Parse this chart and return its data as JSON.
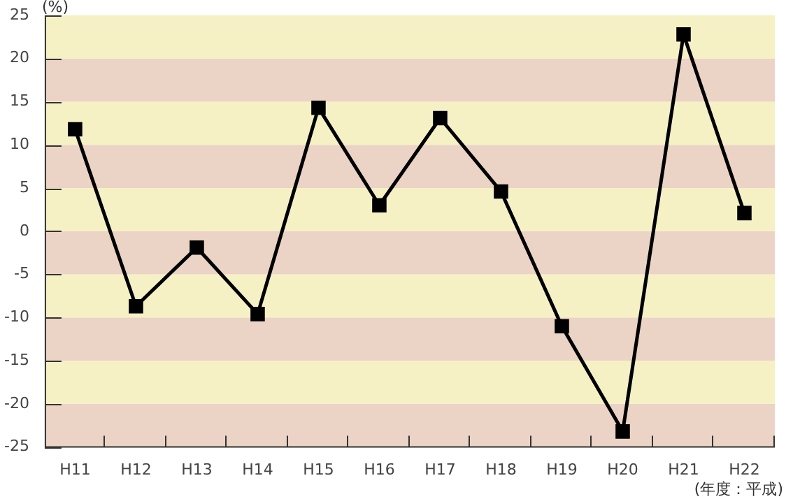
{
  "chart_data": {
    "type": "line",
    "ylabel": "(%)",
    "xlabel": "(年度：平成)",
    "categories": [
      "H11",
      "H12",
      "H13",
      "H14",
      "H15",
      "H16",
      "H17",
      "H18",
      "H19",
      "H20",
      "H21",
      "H22"
    ],
    "series": [
      {
        "color": "#000000",
        "values": [
          11.8,
          -8.7,
          -1.9,
          -9.6,
          14.3,
          3.0,
          13.1,
          4.6,
          -11.0,
          -23.2,
          22.8,
          2.1
        ]
      }
    ],
    "ylim": [
      -25,
      25
    ],
    "yticks": [
      -25,
      -20,
      -15,
      -10,
      -5,
      0,
      5,
      10,
      15,
      20,
      25
    ],
    "bands": [
      {
        "axis": "y",
        "from": -25,
        "to": -20,
        "color": "#ebd3c5"
      },
      {
        "axis": "y",
        "from": -20,
        "to": -15,
        "color": "#f5f1c5"
      },
      {
        "axis": "y",
        "from": -15,
        "to": -10,
        "color": "#ebd3c5"
      },
      {
        "axis": "y",
        "from": -10,
        "to": -5,
        "color": "#f5f1c5"
      },
      {
        "axis": "y",
        "from": -5,
        "to": 0,
        "color": "#ebd3c5"
      },
      {
        "axis": "y",
        "from": 0,
        "to": 5,
        "color": "#f5f1c5"
      },
      {
        "axis": "y",
        "from": 5,
        "to": 10,
        "color": "#ebd3c5"
      },
      {
        "axis": "y",
        "from": 10,
        "to": 15,
        "color": "#f5f1c5"
      },
      {
        "axis": "y",
        "from": 15,
        "to": 20,
        "color": "#ebd3c5"
      },
      {
        "axis": "y",
        "from": 20,
        "to": 25,
        "color": "#f5f1c5"
      }
    ],
    "legend": false,
    "marker": "square",
    "line_style": "solid"
  }
}
